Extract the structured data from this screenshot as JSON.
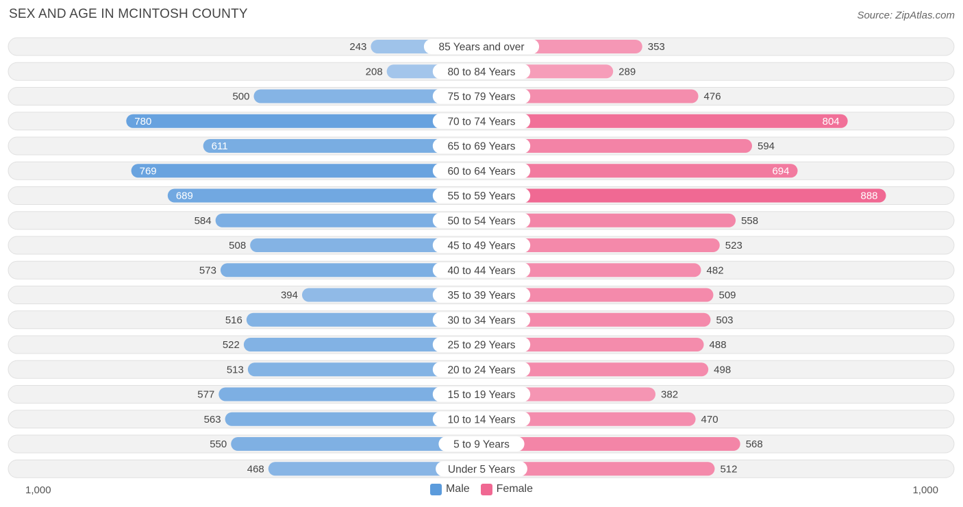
{
  "title": "SEX AND AGE IN MCINTOSH COUNTY",
  "source": "Source: ZipAtlas.com",
  "colors": {
    "male_dark": "#5b9bdc",
    "male_light": "#a9c9ec",
    "female_dark": "#f06892",
    "female_light": "#f7a9c2",
    "row_bg": "#f2f2f2",
    "row_border": "#e0e0e0"
  },
  "legend": {
    "male": "Male",
    "female": "Female"
  },
  "axis": {
    "left_label": "1,000",
    "right_label": "1,000"
  },
  "chart_data": {
    "type": "bar",
    "orientation": "horizontal-diverging",
    "title": "SEX AND AGE IN MCINTOSH COUNTY",
    "xlim": [
      -1000,
      1000
    ],
    "categories": [
      "85 Years and over",
      "80 to 84 Years",
      "75 to 79 Years",
      "70 to 74 Years",
      "65 to 69 Years",
      "60 to 64 Years",
      "55 to 59 Years",
      "50 to 54 Years",
      "45 to 49 Years",
      "40 to 44 Years",
      "35 to 39 Years",
      "30 to 34 Years",
      "25 to 29 Years",
      "20 to 24 Years",
      "15 to 19 Years",
      "10 to 14 Years",
      "5 to 9 Years",
      "Under 5 Years"
    ],
    "series": [
      {
        "name": "Male",
        "values": [
          243,
          208,
          500,
          780,
          611,
          769,
          689,
          584,
          508,
          573,
          394,
          516,
          522,
          513,
          577,
          563,
          550,
          468
        ]
      },
      {
        "name": "Female",
        "values": [
          353,
          289,
          476,
          804,
          594,
          694,
          888,
          558,
          523,
          482,
          509,
          503,
          488,
          498,
          382,
          470,
          568,
          512
        ]
      }
    ],
    "legend_position": "bottom-center",
    "grid": false
  }
}
